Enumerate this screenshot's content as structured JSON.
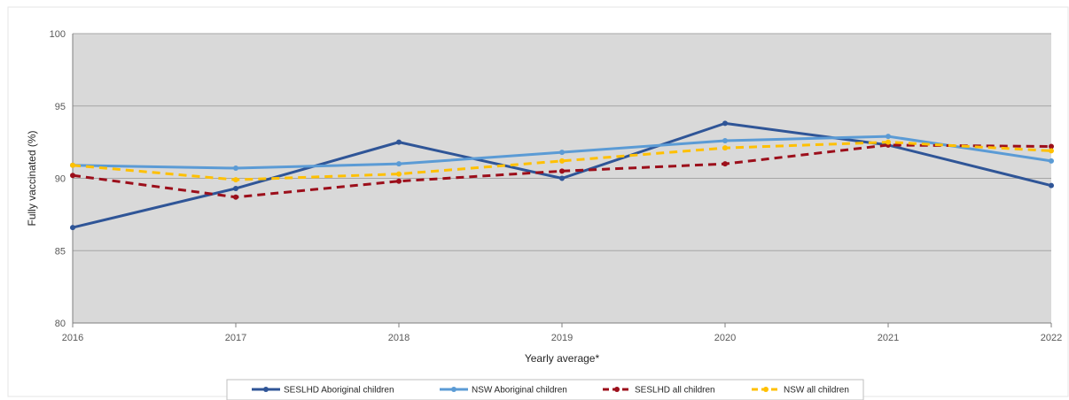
{
  "chart_data": {
    "type": "line",
    "title": "",
    "xlabel": "Yearly average*",
    "ylabel": "Fully vaccinated (%)",
    "x": [
      2016,
      2017,
      2018,
      2019,
      2020,
      2021,
      2022
    ],
    "x_tick_labels": [
      "2016",
      "2017",
      "2018",
      "2019",
      "2020",
      "2021",
      "2022"
    ],
    "ylim": [
      80,
      100
    ],
    "y_ticks": [
      80,
      85,
      90,
      95,
      100
    ],
    "y_tick_labels": [
      "80",
      "85",
      "90",
      "95",
      "100"
    ],
    "grid": true,
    "plot_background": "#d9d9d9",
    "legend_position": "bottom",
    "series": [
      {
        "name": "SESLHD Aboriginal children",
        "values": [
          86.6,
          89.3,
          92.5,
          90.0,
          93.8,
          92.3,
          89.5
        ],
        "color": "#2f5597",
        "style": "solid"
      },
      {
        "name": "NSW Aboriginal children",
        "values": [
          90.9,
          90.7,
          91.0,
          91.8,
          92.6,
          92.9,
          91.2
        ],
        "color": "#5b9bd5",
        "style": "solid"
      },
      {
        "name": "SESLHD all children",
        "values": [
          90.2,
          88.7,
          89.8,
          90.5,
          91.0,
          92.3,
          92.2
        ],
        "color": "#9c0f1b",
        "style": "dashed"
      },
      {
        "name": "NSW all children",
        "values": [
          90.9,
          89.9,
          90.3,
          91.2,
          92.1,
          92.5,
          91.9
        ],
        "color": "#ffc000",
        "style": "dashed"
      }
    ]
  }
}
